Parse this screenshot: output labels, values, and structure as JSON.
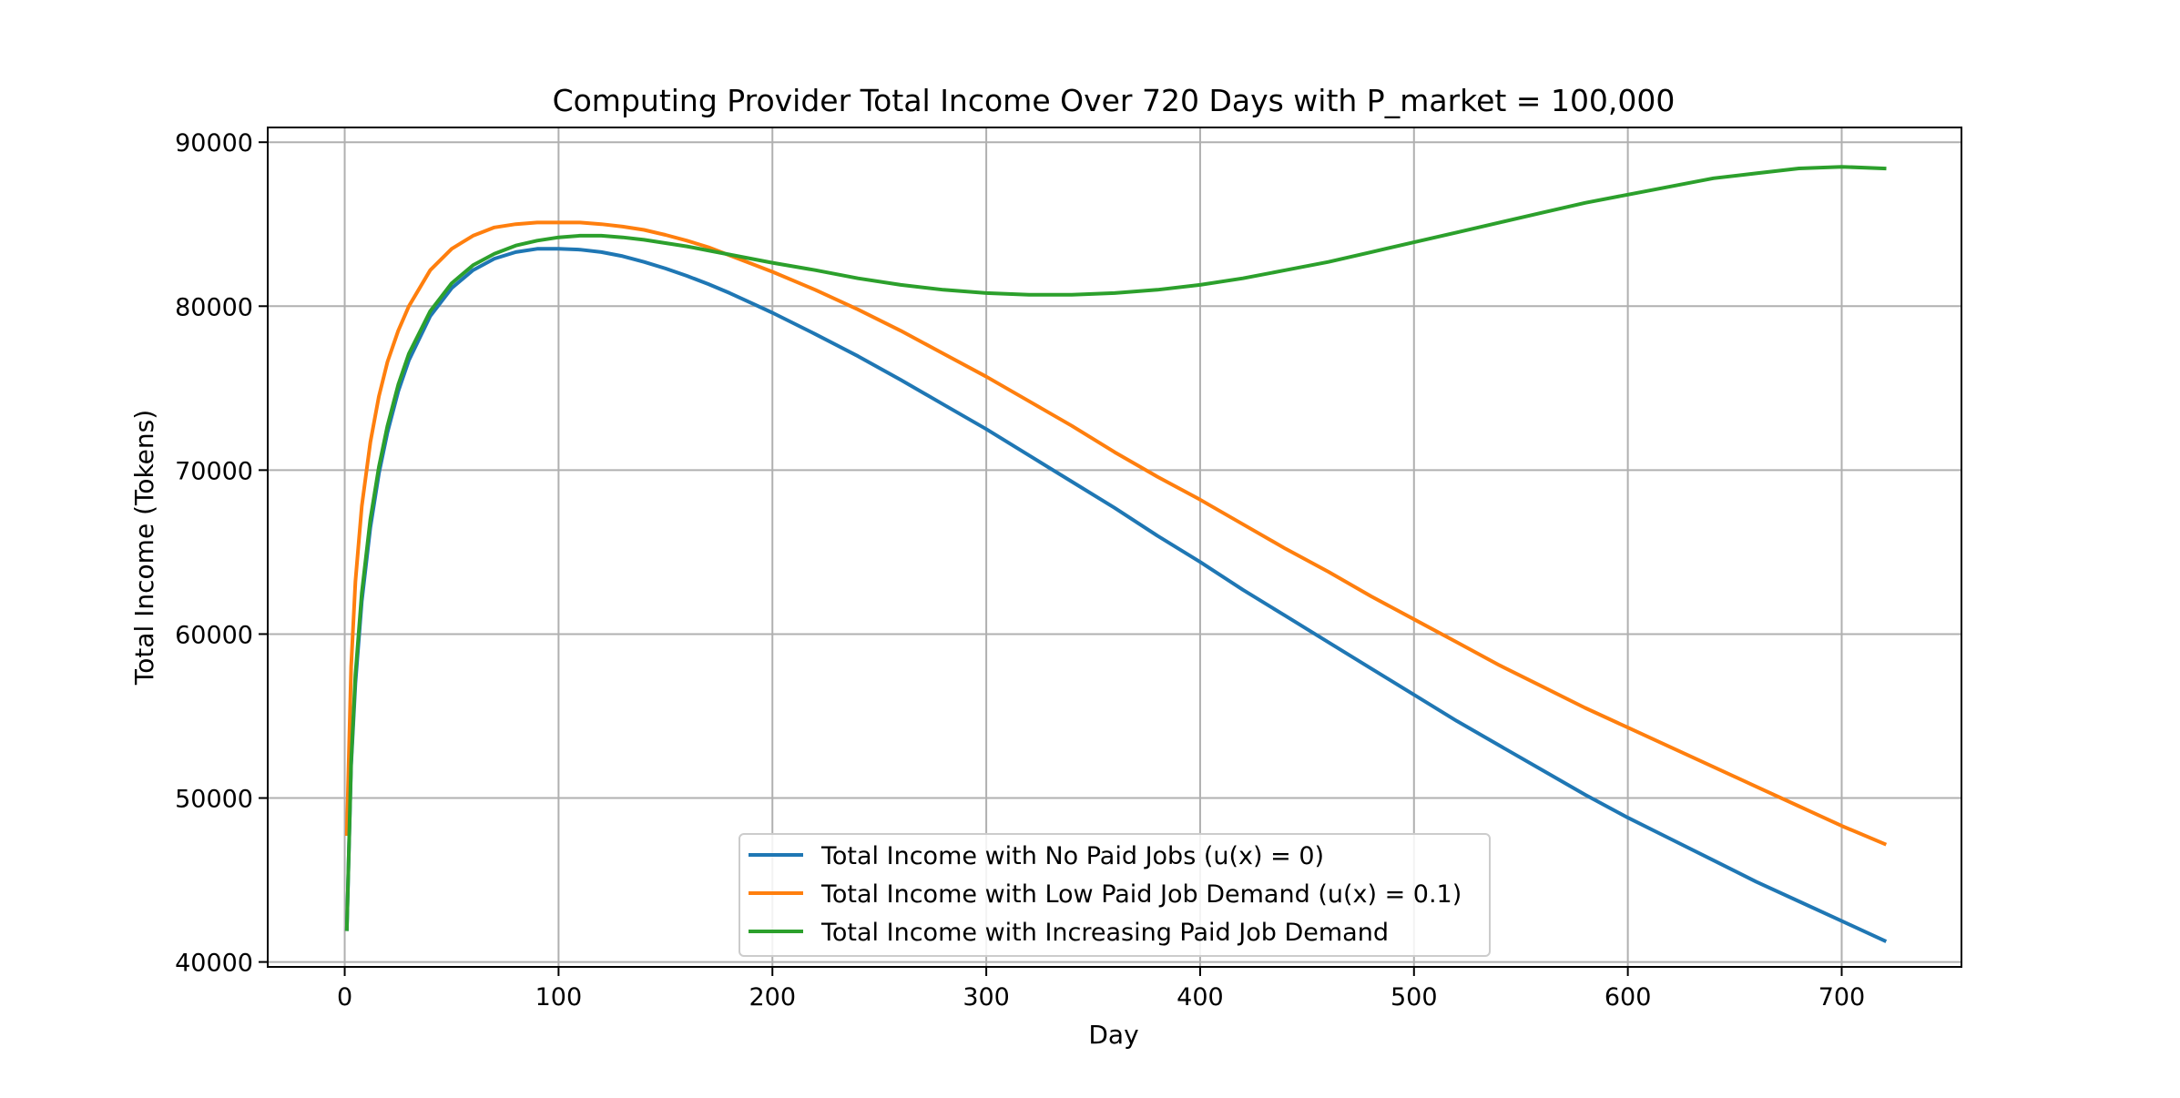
{
  "chart_data": {
    "type": "line",
    "title": "Computing Provider Total Income Over 720 Days with P_market = 100,000",
    "xlabel": "Day",
    "ylabel": "Total Income (Tokens)",
    "xlim": [
      -36,
      756
    ],
    "ylim": [
      39700,
      90900
    ],
    "xticks": [
      0,
      100,
      200,
      300,
      400,
      500,
      600,
      700
    ],
    "yticks": [
      40000,
      50000,
      60000,
      70000,
      80000,
      90000
    ],
    "grid": true,
    "legend_position": "lower-center",
    "series": [
      {
        "name": "Total Income with No Paid Jobs (u(x) = 0)",
        "color": "#1f77b4",
        "x": [
          1,
          3,
          5,
          8,
          12,
          16,
          20,
          25,
          30,
          40,
          50,
          60,
          70,
          80,
          90,
          100,
          110,
          120,
          130,
          140,
          150,
          160,
          170,
          180,
          190,
          200,
          220,
          240,
          260,
          280,
          300,
          320,
          340,
          360,
          380,
          400,
          420,
          440,
          460,
          480,
          500,
          520,
          540,
          560,
          580,
          600,
          620,
          640,
          660,
          680,
          700,
          720
        ],
        "y": [
          42000,
          52000,
          57000,
          62000,
          66500,
          69800,
          72300,
          74800,
          76700,
          79400,
          81100,
          82200,
          82900,
          83300,
          83500,
          83500,
          83450,
          83300,
          83050,
          82700,
          82300,
          81850,
          81350,
          80800,
          80200,
          79600,
          78300,
          76950,
          75500,
          74000,
          72500,
          70900,
          69300,
          67700,
          66000,
          64400,
          62700,
          61100,
          59500,
          57900,
          56300,
          54700,
          53200,
          51700,
          50200,
          48800,
          47500,
          46200,
          44900,
          43700,
          42500,
          41300
        ]
      },
      {
        "name": "Total Income with Low Paid Job Demand (u(x) = 0.1)",
        "color": "#ff7f0e",
        "x": [
          1,
          3,
          5,
          8,
          12,
          16,
          20,
          25,
          30,
          40,
          50,
          60,
          70,
          80,
          90,
          100,
          110,
          120,
          130,
          140,
          150,
          160,
          170,
          180,
          190,
          200,
          220,
          240,
          260,
          280,
          300,
          320,
          340,
          360,
          380,
          400,
          420,
          440,
          460,
          480,
          500,
          520,
          540,
          560,
          580,
          600,
          620,
          640,
          660,
          680,
          700,
          720
        ],
        "y": [
          47800,
          58000,
          63200,
          67800,
          71700,
          74500,
          76600,
          78500,
          80000,
          82200,
          83500,
          84300,
          84800,
          85000,
          85100,
          85100,
          85100,
          85000,
          84850,
          84650,
          84350,
          84000,
          83600,
          83100,
          82600,
          82100,
          81000,
          79800,
          78500,
          77100,
          75700,
          74200,
          72700,
          71100,
          69600,
          68200,
          66700,
          65200,
          63800,
          62300,
          60900,
          59500,
          58100,
          56800,
          55500,
          54300,
          53100,
          51900,
          50700,
          49500,
          48300,
          47200
        ]
      },
      {
        "name": "Total Income with Increasing Paid Job Demand",
        "color": "#2ca02c",
        "x": [
          1,
          3,
          5,
          8,
          12,
          16,
          20,
          25,
          30,
          40,
          50,
          60,
          70,
          80,
          90,
          100,
          110,
          120,
          130,
          140,
          150,
          160,
          170,
          180,
          190,
          200,
          220,
          240,
          260,
          280,
          300,
          320,
          340,
          360,
          380,
          400,
          420,
          440,
          460,
          480,
          500,
          520,
          540,
          560,
          580,
          600,
          620,
          640,
          660,
          680,
          700,
          720
        ],
        "y": [
          42000,
          52200,
          57500,
          62500,
          67000,
          70200,
          72700,
          75200,
          77100,
          79700,
          81400,
          82500,
          83200,
          83700,
          84000,
          84200,
          84300,
          84300,
          84200,
          84050,
          83850,
          83650,
          83400,
          83150,
          82900,
          82650,
          82200,
          81700,
          81300,
          81000,
          80800,
          80700,
          80700,
          80800,
          81000,
          81300,
          81700,
          82200,
          82700,
          83300,
          83900,
          84500,
          85100,
          85700,
          86300,
          86800,
          87300,
          87800,
          88100,
          88400,
          88500,
          88400
        ]
      }
    ]
  }
}
